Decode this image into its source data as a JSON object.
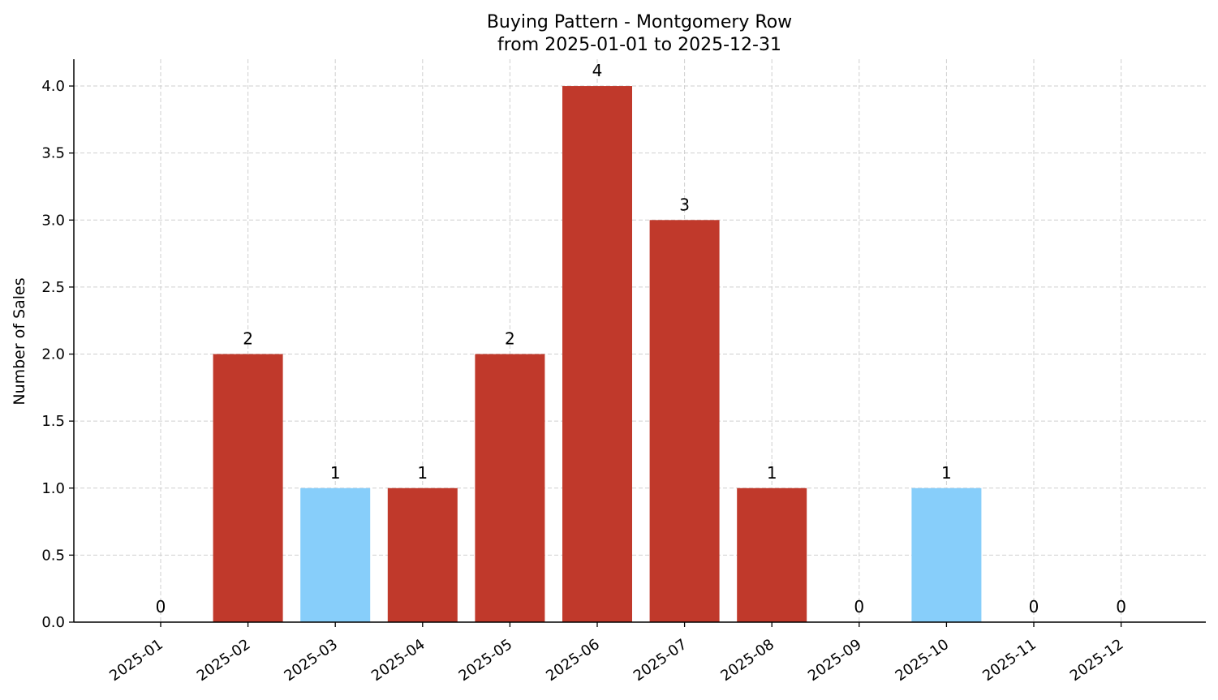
{
  "chart_data": {
    "type": "bar",
    "title_line1": "Buying Pattern - Montgomery Row",
    "title_line2": "from 2025-01-01 to 2025-12-31",
    "xlabel": "",
    "ylabel": "Number of Sales",
    "categories": [
      "2025-01",
      "2025-02",
      "2025-03",
      "2025-04",
      "2025-05",
      "2025-06",
      "2025-07",
      "2025-08",
      "2025-09",
      "2025-10",
      "2025-11",
      "2025-12"
    ],
    "values": [
      0,
      2,
      1,
      1,
      2,
      4,
      3,
      1,
      0,
      1,
      0,
      0
    ],
    "bar_colors": [
      "#c0392b",
      "#c0392b",
      "#87cefa",
      "#c0392b",
      "#c0392b",
      "#c0392b",
      "#c0392b",
      "#c0392b",
      "#c0392b",
      "#87cefa",
      "#c0392b",
      "#c0392b"
    ],
    "data_labels": [
      "0",
      "2",
      "1",
      "1",
      "2",
      "4",
      "3",
      "1",
      "0",
      "1",
      "0",
      "0"
    ],
    "y_ticks": [
      "0.0",
      "0.5",
      "1.0",
      "1.5",
      "2.0",
      "2.5",
      "3.0",
      "3.5",
      "4.0"
    ],
    "ylim": [
      0,
      4.2
    ],
    "grid": true,
    "legend": "none"
  }
}
